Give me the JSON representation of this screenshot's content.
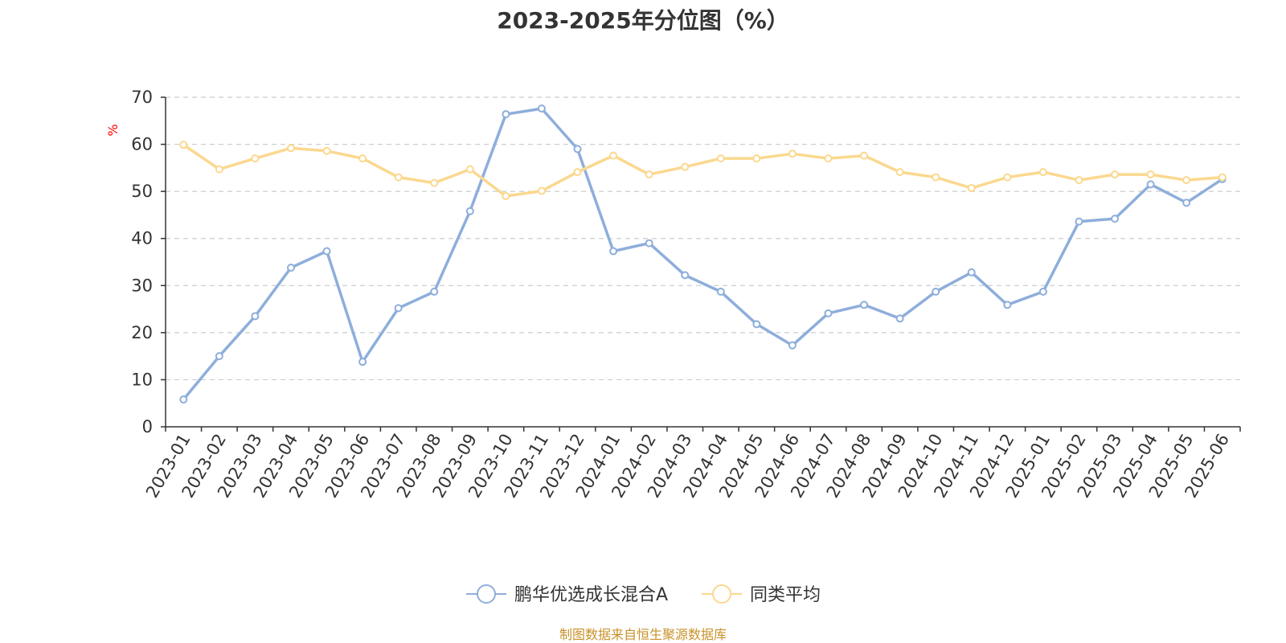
{
  "title": "2023-2025年分位图（%）",
  "source": "制图数据来自恒生聚源数据库",
  "chart_data": {
    "type": "line",
    "title": "2023-2025年分位图（%）",
    "ylabel": "%",
    "xlabel": "",
    "ylim": [
      0,
      70
    ],
    "yticks": [
      0,
      10,
      20,
      30,
      40,
      50,
      60,
      70
    ],
    "grid": true,
    "legend_position": "bottom-center",
    "categories": [
      "2023-01",
      "2023-02",
      "2023-03",
      "2023-04",
      "2023-05",
      "2023-06",
      "2023-07",
      "2023-08",
      "2023-09",
      "2023-10",
      "2023-11",
      "2023-12",
      "2024-01",
      "2024-02",
      "2024-03",
      "2024-04",
      "2024-05",
      "2024-06",
      "2024-07",
      "2024-08",
      "2024-09",
      "2024-10",
      "2024-11",
      "2024-12",
      "2025-01",
      "2025-02",
      "2025-03",
      "2025-04",
      "2025-05",
      "2025-06"
    ],
    "series": [
      {
        "name": "鹏华优选成长混合A",
        "color": "#8eaedb",
        "values": [
          5.8,
          15.0,
          23.5,
          33.8,
          37.3,
          13.8,
          25.2,
          28.7,
          45.8,
          66.4,
          67.6,
          59.0,
          37.3,
          39.0,
          32.2,
          28.7,
          21.8,
          17.3,
          24.1,
          25.9,
          23.0,
          28.7,
          32.8,
          25.9,
          28.7,
          43.6,
          44.2,
          51.5,
          47.6,
          52.6
        ]
      },
      {
        "name": "同类平均",
        "color": "#fbd88f",
        "values": [
          59.9,
          54.7,
          57.0,
          59.2,
          58.6,
          57.0,
          53.0,
          51.8,
          54.7,
          49.0,
          50.1,
          54.1,
          57.6,
          53.6,
          55.2,
          57.0,
          57.0,
          58.0,
          57.0,
          57.6,
          54.1,
          53.0,
          50.7,
          53.0,
          54.1,
          52.4,
          53.6,
          53.6,
          52.4,
          53.0
        ]
      }
    ]
  }
}
